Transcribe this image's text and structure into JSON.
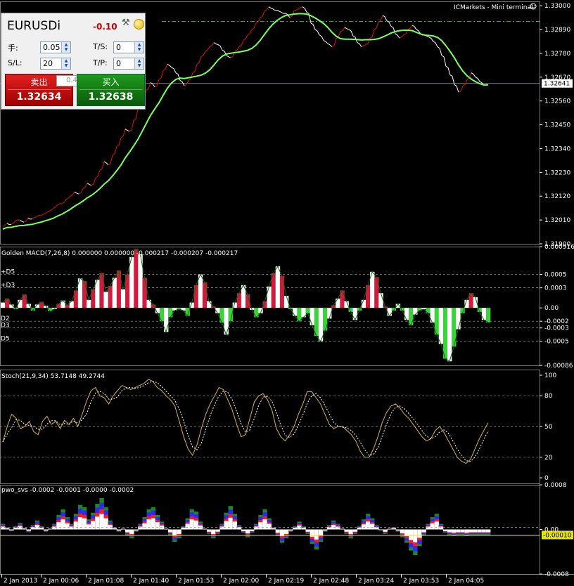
{
  "terminal": {
    "title": "ICMarkets - Mini terminal",
    "status_icon": "smiley-icon"
  },
  "trade_panel": {
    "symbol": "EURUSDi",
    "profit": "-0.10",
    "lots_label": "手:",
    "lots_value": "0.05",
    "sl_label": "S/L:",
    "sl_value": "20",
    "ts_label": "T/S:",
    "ts_value": "0",
    "tp_label": "T/P:",
    "tp_value": "0",
    "lot_step": "0.4",
    "sell_label": "卖出",
    "sell_price": "1.32634",
    "buy_label": "买入",
    "buy_price": "1.32638",
    "icons": [
      "tools-icon",
      "sun-icon"
    ],
    "colors": {
      "sell": "#c00000",
      "buy": "#107010"
    }
  },
  "price_axis": {
    "ticks": [
      "1.33000",
      "1.32890",
      "1.32780",
      "1.32670",
      "1.32560",
      "1.32450",
      "1.32340",
      "1.32230",
      "1.32120",
      "1.32010",
      "1.31900"
    ],
    "current_price": "1.32641"
  },
  "time_axis": {
    "labels": [
      "2 Jan 2013",
      "2 Jan 00:06",
      "2 Jan 01:08",
      "2 Jan 01:40",
      "2 Jan 01:53",
      "2 Jan 02:00",
      "2 Jan 02:19",
      "2 Jan 02:48",
      "2 Jan 03:24",
      "2 Jan 03:53",
      "2 Jan 04:05"
    ]
  },
  "macd": {
    "title": "Golden MACD(7,26,8) 0.000000 0.000000 -0.000217 -0.000207 -0.000217",
    "scale": [
      "0.000916",
      "0.0005",
      "0.0003",
      "0.00",
      "-0.0002",
      "-0.0003",
      "-0.0005",
      "-0.00086"
    ],
    "level_labels": [
      "+D5",
      "+D3",
      "D2",
      "D3",
      "D5"
    ]
  },
  "stoch": {
    "title": "Stoch(21,9,34) 53.7148 49.2744",
    "scale": [
      "100",
      "80",
      "50",
      "20",
      "0"
    ]
  },
  "pwo": {
    "title": "pwo_svs -0.0002 -0.0001 -0.0000 -0.0002",
    "scale": [
      "0.0008",
      "0.00",
      "-0.0008"
    ],
    "current": "-0.00010"
  },
  "chart_data": [
    {
      "type": "line",
      "name": "price",
      "xlabel": "",
      "ylabel": "",
      "ylim": [
        1.319,
        1.3302
      ],
      "close": [
        1.3198,
        1.31995,
        1.3199,
        1.32005,
        1.3201,
        1.32,
        1.3202,
        1.32015,
        1.32025,
        1.3203,
        1.3204,
        1.3205,
        1.32065,
        1.3208,
        1.32085,
        1.32105,
        1.3212,
        1.3214,
        1.3213,
        1.32155,
        1.3218,
        1.3217,
        1.32205,
        1.3224,
        1.3228,
        1.32265,
        1.3231,
        1.3235,
        1.3239,
        1.3243,
        1.3242,
        1.3247,
        1.3252,
        1.3256,
        1.3261,
        1.32645,
        1.32625,
        1.3266,
        1.327,
        1.3273,
        1.32715,
        1.3269,
        1.32655,
        1.3263,
        1.32655,
        1.3269,
        1.3273,
        1.32765,
        1.3279,
        1.3281,
        1.3283,
        1.3282,
        1.32795,
        1.3277,
        1.3276,
        1.3279,
        1.3281,
        1.3284,
        1.32865,
        1.3289,
        1.3292,
        1.32945,
        1.32975,
        1.32995,
        1.32985,
        1.3298,
        1.3297,
        1.32965,
        1.32945,
        1.32975,
        1.32985,
        1.32995,
        1.3297,
        1.3292,
        1.3289,
        1.32865,
        1.3284,
        1.32825,
        1.3281,
        1.3285,
        1.3288,
        1.329,
        1.3289,
        1.3286,
        1.3283,
        1.3281,
        1.3282,
        1.3285,
        1.3289,
        1.32925,
        1.32955,
        1.3293,
        1.32905,
        1.3287,
        1.3285,
        1.32865,
        1.3289,
        1.3291,
        1.3289,
        1.3287,
        1.32865,
        1.32855,
        1.32835,
        1.3281,
        1.3277,
        1.3272,
        1.3268,
        1.32635,
        1.326,
        1.3263,
        1.3266,
        1.3269,
        1.3267,
        1.3265,
        1.3263,
        1.32641
      ]
    },
    {
      "type": "bar",
      "name": "Golden MACD",
      "ylim": [
        -0.00086,
        0.000916
      ],
      "values": [
        8e-05,
        0.00014,
        5e-05,
        -2e-05,
        0.00012,
        0.0002,
        6e-05,
        -4e-05,
        5e-05,
        9e-05,
        3e-05,
        -5e-05,
        -2e-05,
        6e-05,
        0.00011,
        4e-05,
        0.0001,
        0.00026,
        0.00044,
        0.0004,
        0.00012,
        0.00028,
        0.00042,
        0.00052,
        0.00024,
        0.00033,
        0.00045,
        0.00056,
        0.00028,
        0.0005,
        0.00076,
        0.00088,
        0.0008,
        0.00045,
        0.00012,
        5e-05,
        -8e-05,
        -0.0002,
        -0.00036,
        -0.00014,
        -4e-05,
        -2e-05,
        -4e-05,
        -0.00012,
        8e-05,
        0.00034,
        0.0005,
        0.00038,
        0.0001,
        2e-05,
        -8e-05,
        -0.00022,
        -0.0004,
        -0.0002,
        8e-05,
        0.00022,
        0.00034,
        0.0002,
        -3e-05,
        -0.00014,
        -8e-05,
        0.0001,
        0.00032,
        0.00052,
        0.00062,
        0.00048,
        0.00018,
        -2e-05,
        -0.00012,
        -0.0002,
        -0.00014,
        -8e-05,
        -0.00026,
        -0.00042,
        -0.0005,
        -0.00034,
        -0.00016,
        4e-05,
        0.00014,
        0.00026,
        0.0001,
        -6e-05,
        -0.00018,
        -4e-05,
        0.00012,
        0.00034,
        0.00054,
        0.00046,
        0.00022,
        2e-05,
        -0.00012,
        -4e-05,
        6e-05,
        -4e-05,
        -0.00018,
        -0.00026,
        -0.0001,
        -4e-05,
        -2e-05,
        -8e-05,
        -0.00022,
        -0.0004,
        -0.00054,
        -0.00076,
        -0.0008,
        -0.00058,
        -0.00032,
        -8e-05,
        0.00012,
        0.00022,
        0.00016,
        -6e-05,
        -0.00018,
        -0.000217
      ]
    },
    {
      "type": "line",
      "name": "Stoch",
      "ylim": [
        0,
        100
      ],
      "values": [
        35,
        50,
        62,
        58,
        48,
        50,
        55,
        45,
        42,
        55,
        60,
        52,
        55,
        48,
        56,
        52,
        58,
        50,
        62,
        75,
        85,
        88,
        80,
        78,
        72,
        80,
        85,
        90,
        88,
        86,
        88,
        90,
        92,
        96,
        94,
        88,
        85,
        80,
        76,
        70,
        55,
        40,
        28,
        22,
        32,
        48,
        62,
        72,
        80,
        88,
        86,
        76,
        66,
        52,
        40,
        42,
        58,
        74,
        80,
        82,
        76,
        66,
        48,
        40,
        36,
        42,
        50,
        62,
        72,
        84,
        84,
        78,
        72,
        62,
        52,
        48,
        50,
        50,
        46,
        42,
        36,
        26,
        20,
        20,
        28,
        40,
        54,
        64,
        70,
        72,
        68,
        62,
        58,
        52,
        46,
        40,
        36,
        38,
        46,
        50,
        44,
        36,
        28,
        20,
        16,
        14,
        18,
        28,
        38,
        46,
        53.7148
      ]
    },
    {
      "type": "area",
      "name": "pwo_svs",
      "ylim": [
        -0.0008,
        0.0008
      ],
      "values": [
        0.0001,
        4e-05,
        -3e-05,
        6e-05,
        0.00012,
        3e-05,
        -5e-05,
        8e-05,
        0.00016,
        6e-05,
        -4e-05,
        2e-05,
        0.0001,
        0.00026,
        0.00036,
        0.00022,
        0.0001,
        0.00028,
        0.00044,
        0.0004,
        0.00018,
        0.0003,
        0.00046,
        0.00056,
        0.0004,
        0.00016,
        4e-05,
        -4e-05,
        2e-05,
        -0.0001,
        -0.00016,
        -4e-05,
        0.0001,
        0.00022,
        0.00036,
        0.0004,
        0.00026,
        0.00014,
        2e-05,
        -0.0001,
        -0.00022,
        -0.00016,
        6e-05,
        0.0002,
        0.00036,
        0.00032,
        0.00014,
        2e-05,
        -8e-05,
        -0.00016,
        -8e-05,
        0.0001,
        0.0003,
        0.00042,
        0.00028,
        8e-05,
        -6e-05,
        -0.00014,
        -6e-05,
        0.0001,
        0.00026,
        0.00036,
        0.0002,
        4e-05,
        -0.00012,
        -0.00024,
        -0.00016,
        -4e-05,
        6e-05,
        0.00014,
        6e-05,
        -8e-05,
        -0.00026,
        -0.00036,
        -0.00022,
        -4e-05,
        8e-05,
        0.00016,
        0.0001,
        2e-05,
        -8e-05,
        -0.00016,
        -8e-05,
        6e-05,
        0.00018,
        0.00028,
        0.0002,
        8e-05,
        -2e-05,
        -8e-05,
        2e-05,
        4e-05,
        -4e-05,
        -0.00014,
        -0.00024,
        -0.00038,
        -0.00046,
        -0.0003,
        -0.0001,
        0.0001,
        0.00022,
        0.00028,
        0.0001,
        -6e-05,
        -0.0001,
        -0.00012,
        -0.0001,
        -0.0001,
        -0.00012,
        -0.0001,
        -0.0001,
        -0.0001,
        -0.0001,
        -0.0001
      ]
    }
  ]
}
